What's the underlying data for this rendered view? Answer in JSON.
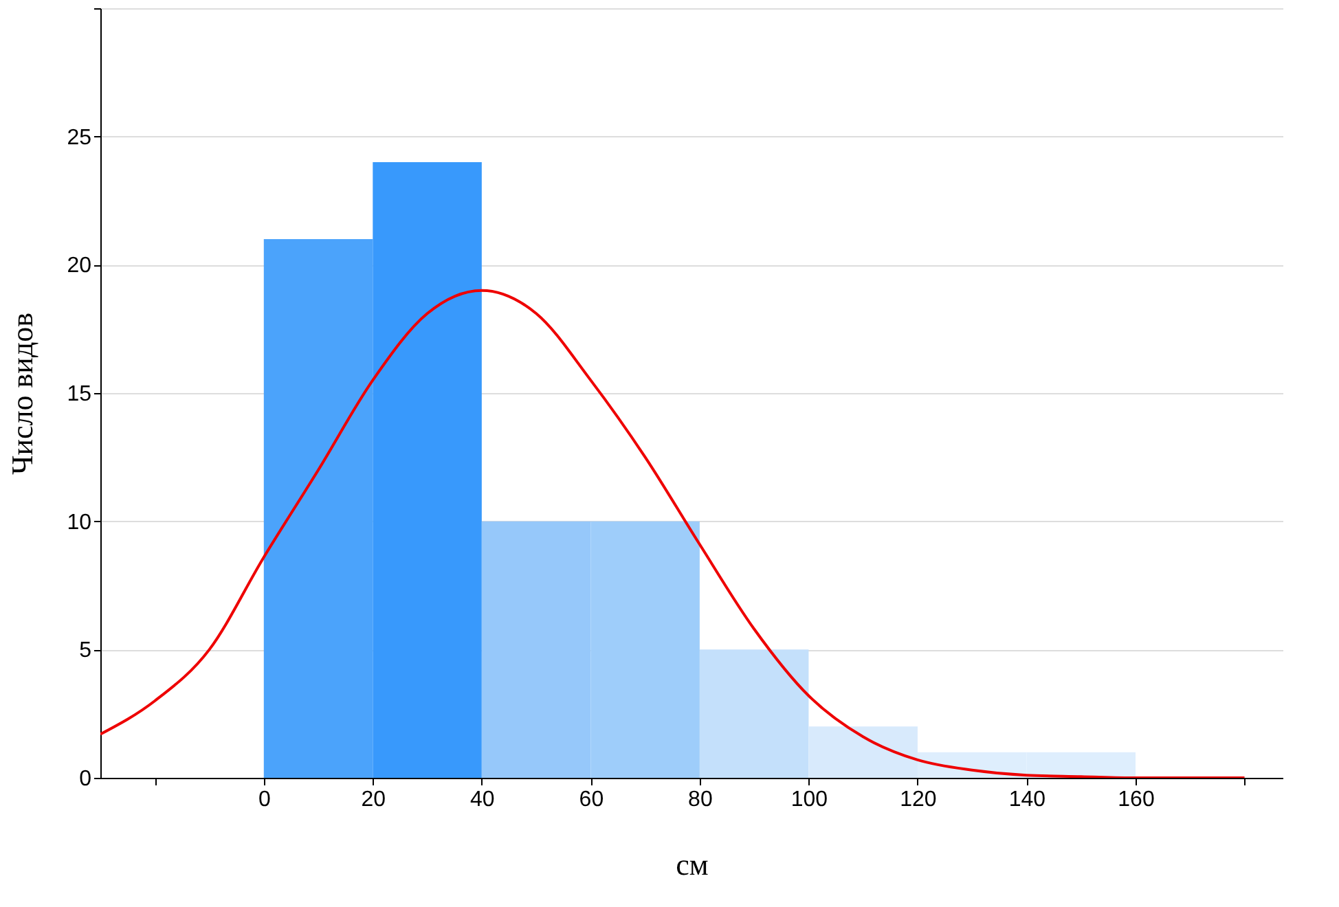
{
  "chart_data": {
    "type": "histogram",
    "xlabel": "см",
    "ylabel": "Число видов",
    "bins": [
      0,
      20,
      40,
      60,
      80,
      100,
      120,
      140,
      160
    ],
    "values": [
      21,
      24,
      10,
      10,
      5,
      2,
      1,
      1
    ],
    "colors": [
      "#4ba3fb",
      "#3899fc",
      "#96c8fa",
      "#9ecdfa",
      "#c4e0fb",
      "#d8eafc",
      "#deeefd",
      "#deeefd"
    ],
    "series": [
      {
        "type": "line",
        "color": "#ee0000",
        "x": [
          -30,
          -20,
          -10,
          0,
          10,
          20,
          30,
          40,
          50,
          60,
          70,
          80,
          90,
          100,
          110,
          120,
          130,
          140,
          150,
          160,
          170,
          180
        ],
        "values": [
          1.7,
          3.0,
          5.0,
          8.6,
          12.0,
          15.5,
          18.1,
          19.0,
          18.1,
          15.5,
          12.5,
          9.1,
          5.8,
          3.2,
          1.6,
          0.7,
          0.3,
          0.1,
          0.05,
          0,
          0,
          0
        ]
      }
    ],
    "xlim": [
      -30,
      187
    ],
    "ylim": [
      0,
      30
    ],
    "xticks": [
      {
        "value": -20,
        "label": null
      },
      0,
      20,
      40,
      60,
      80,
      100,
      120,
      140,
      160,
      {
        "value": 180,
        "label": null
      }
    ],
    "yticks": [
      0,
      5,
      10,
      15,
      20,
      25,
      {
        "value": 30,
        "label": null
      }
    ],
    "grid": "y"
  }
}
